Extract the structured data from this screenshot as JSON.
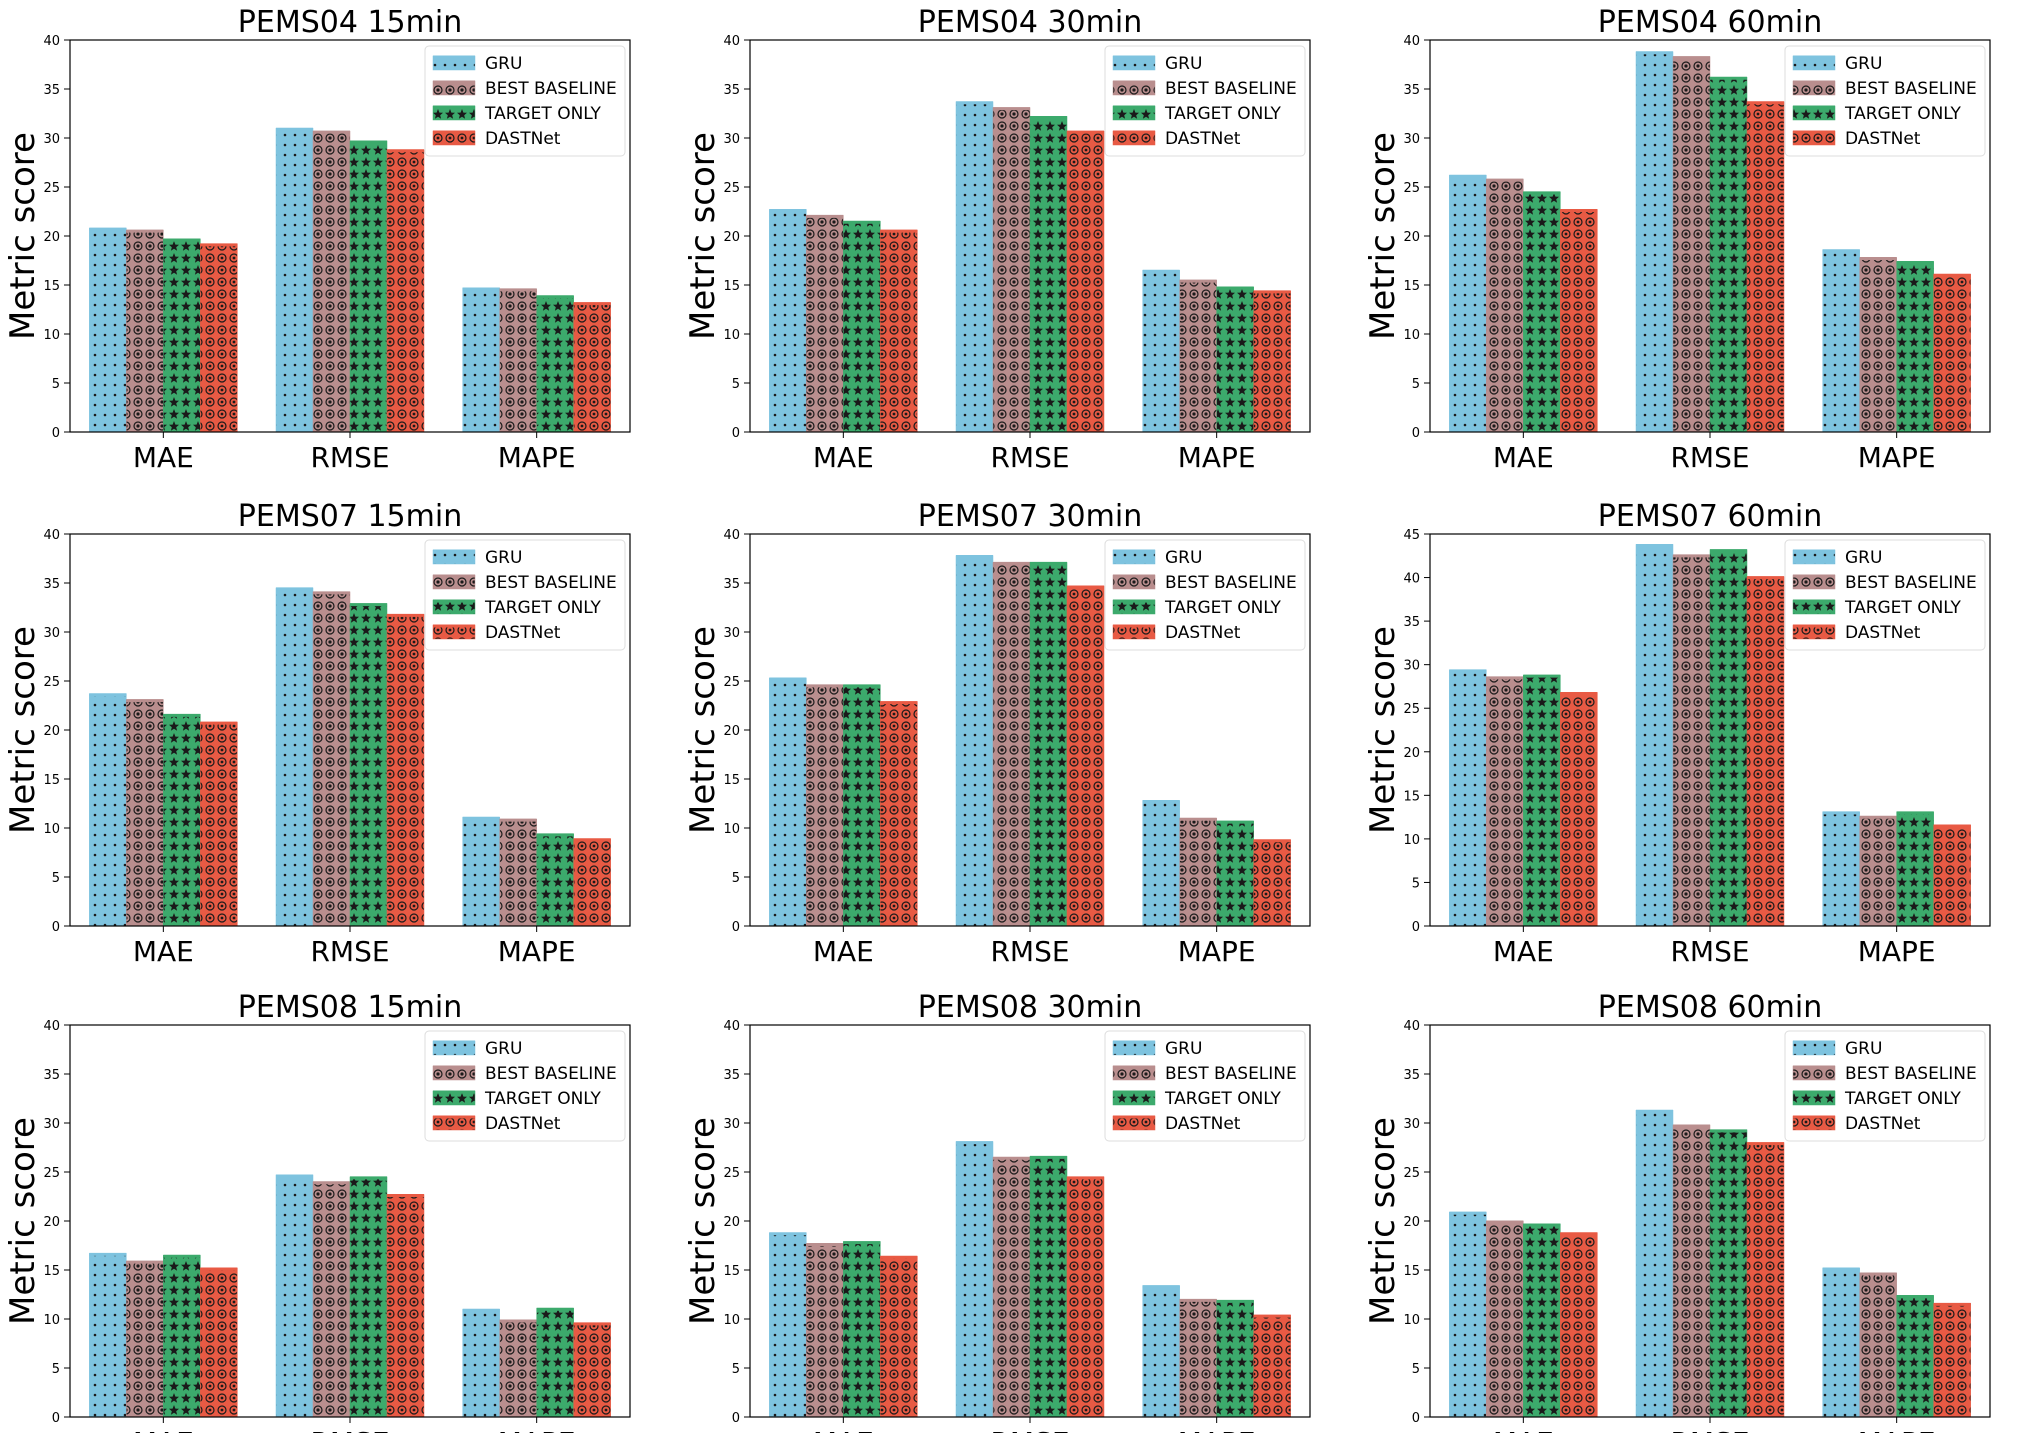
{
  "series_colors": [
    "#7ec3df",
    "#b98e8e",
    "#3caa6c",
    "#e85a44"
  ],
  "legend_labels": [
    "GRU",
    "BEST BASELINE",
    "TARGET ONLY",
    "DASTNet"
  ],
  "chart_data": [
    {
      "type": "bar",
      "title": "PEMS04 15min",
      "ylabel": "Metric score",
      "categories": [
        "MAE",
        "RMSE",
        "MAPE"
      ],
      "ylim": [
        0,
        40
      ],
      "yticks": [
        0,
        5,
        10,
        15,
        20,
        25,
        30,
        35,
        40
      ],
      "legend": "top-right",
      "series": [
        {
          "name": "GRU",
          "values": [
            20.8,
            31.0,
            14.7
          ]
        },
        {
          "name": "BEST BASELINE",
          "values": [
            20.6,
            30.7,
            14.6
          ]
        },
        {
          "name": "TARGET ONLY",
          "values": [
            19.7,
            29.7,
            13.9
          ]
        },
        {
          "name": "DASTNet",
          "values": [
            19.2,
            28.8,
            13.2
          ]
        }
      ]
    },
    {
      "type": "bar",
      "title": "PEMS04 30min",
      "ylabel": "Metric score",
      "categories": [
        "MAE",
        "RMSE",
        "MAPE"
      ],
      "ylim": [
        0,
        40
      ],
      "yticks": [
        0,
        5,
        10,
        15,
        20,
        25,
        30,
        35,
        40
      ],
      "legend": "top-right",
      "series": [
        {
          "name": "GRU",
          "values": [
            22.7,
            33.7,
            16.5
          ]
        },
        {
          "name": "BEST BASELINE",
          "values": [
            22.1,
            33.1,
            15.5
          ]
        },
        {
          "name": "TARGET ONLY",
          "values": [
            21.5,
            32.2,
            14.8
          ]
        },
        {
          "name": "DASTNet",
          "values": [
            20.6,
            30.7,
            14.4
          ]
        }
      ]
    },
    {
      "type": "bar",
      "title": "PEMS04 60min",
      "ylabel": "Metric score",
      "categories": [
        "MAE",
        "RMSE",
        "MAPE"
      ],
      "ylim": [
        0,
        40
      ],
      "yticks": [
        0,
        5,
        10,
        15,
        20,
        25,
        30,
        35,
        40
      ],
      "legend": "top-right",
      "series": [
        {
          "name": "GRU",
          "values": [
            26.2,
            38.8,
            18.6
          ]
        },
        {
          "name": "BEST BASELINE",
          "values": [
            25.8,
            38.3,
            17.8
          ]
        },
        {
          "name": "TARGET ONLY",
          "values": [
            24.5,
            36.2,
            17.4
          ]
        },
        {
          "name": "DASTNet",
          "values": [
            22.7,
            33.7,
            16.1
          ]
        }
      ]
    },
    {
      "type": "bar",
      "title": "PEMS07 15min",
      "ylabel": "Metric score",
      "categories": [
        "MAE",
        "RMSE",
        "MAPE"
      ],
      "ylim": [
        0,
        40
      ],
      "yticks": [
        0,
        5,
        10,
        15,
        20,
        25,
        30,
        35,
        40
      ],
      "legend": "top-right",
      "series": [
        {
          "name": "GRU",
          "values": [
            23.7,
            34.5,
            11.1
          ]
        },
        {
          "name": "BEST BASELINE",
          "values": [
            23.1,
            34.1,
            10.9
          ]
        },
        {
          "name": "TARGET ONLY",
          "values": [
            21.6,
            32.9,
            9.4
          ]
        },
        {
          "name": "DASTNet",
          "values": [
            20.8,
            31.8,
            8.9
          ]
        }
      ]
    },
    {
      "type": "bar",
      "title": "PEMS07 30min",
      "ylabel": "Metric score",
      "categories": [
        "MAE",
        "RMSE",
        "MAPE"
      ],
      "ylim": [
        0,
        40
      ],
      "yticks": [
        0,
        5,
        10,
        15,
        20,
        25,
        30,
        35,
        40
      ],
      "legend": "top-right",
      "series": [
        {
          "name": "GRU",
          "values": [
            25.3,
            37.8,
            12.8
          ]
        },
        {
          "name": "BEST BASELINE",
          "values": [
            24.6,
            37.1,
            11.0
          ]
        },
        {
          "name": "TARGET ONLY",
          "values": [
            24.6,
            37.1,
            10.7
          ]
        },
        {
          "name": "DASTNet",
          "values": [
            22.9,
            34.7,
            8.8
          ]
        }
      ]
    },
    {
      "type": "bar",
      "title": "PEMS07 60min",
      "ylabel": "Metric score",
      "categories": [
        "MAE",
        "RMSE",
        "MAPE"
      ],
      "ylim": [
        0,
        45
      ],
      "yticks": [
        0,
        5,
        10,
        15,
        20,
        25,
        30,
        35,
        40,
        45
      ],
      "legend": "top-right",
      "series": [
        {
          "name": "GRU",
          "values": [
            29.4,
            43.8,
            13.1
          ]
        },
        {
          "name": "BEST BASELINE",
          "values": [
            28.6,
            42.6,
            12.6
          ]
        },
        {
          "name": "TARGET ONLY",
          "values": [
            28.8,
            43.2,
            13.1
          ]
        },
        {
          "name": "DASTNet",
          "values": [
            26.8,
            40.1,
            11.6
          ]
        }
      ]
    },
    {
      "type": "bar",
      "title": "PEMS08 15min",
      "ylabel": "Metric score",
      "categories": [
        "MAE",
        "RMSE",
        "MAPE"
      ],
      "ylim": [
        0,
        40
      ],
      "yticks": [
        0,
        5,
        10,
        15,
        20,
        25,
        30,
        35,
        40
      ],
      "legend": "top-right",
      "series": [
        {
          "name": "GRU",
          "values": [
            16.7,
            24.7,
            11.0
          ]
        },
        {
          "name": "BEST BASELINE",
          "values": [
            15.9,
            24.0,
            9.9
          ]
        },
        {
          "name": "TARGET ONLY",
          "values": [
            16.5,
            24.5,
            11.1
          ]
        },
        {
          "name": "DASTNet",
          "values": [
            15.2,
            22.7,
            9.6
          ]
        }
      ]
    },
    {
      "type": "bar",
      "title": "PEMS08 30min",
      "ylabel": "Metric score",
      "categories": [
        "MAE",
        "RMSE",
        "MAPE"
      ],
      "ylim": [
        0,
        40
      ],
      "yticks": [
        0,
        5,
        10,
        15,
        20,
        25,
        30,
        35,
        40
      ],
      "legend": "top-right",
      "series": [
        {
          "name": "GRU",
          "values": [
            18.8,
            28.1,
            13.4
          ]
        },
        {
          "name": "BEST BASELINE",
          "values": [
            17.7,
            26.5,
            12.0
          ]
        },
        {
          "name": "TARGET ONLY",
          "values": [
            17.9,
            26.6,
            11.9
          ]
        },
        {
          "name": "DASTNet",
          "values": [
            16.4,
            24.5,
            10.4
          ]
        }
      ]
    },
    {
      "type": "bar",
      "title": "PEMS08 60min",
      "ylabel": "Metric score",
      "categories": [
        "MAE",
        "RMSE",
        "MAPE"
      ],
      "ylim": [
        0,
        40
      ],
      "yticks": [
        0,
        5,
        10,
        15,
        20,
        25,
        30,
        35,
        40
      ],
      "legend": "top-right",
      "series": [
        {
          "name": "GRU",
          "values": [
            20.9,
            31.3,
            15.2
          ]
        },
        {
          "name": "BEST BASELINE",
          "values": [
            20.0,
            29.8,
            14.7
          ]
        },
        {
          "name": "TARGET ONLY",
          "values": [
            19.7,
            29.3,
            12.4
          ]
        },
        {
          "name": "DASTNet",
          "values": [
            18.8,
            28.0,
            11.6
          ]
        }
      ]
    }
  ]
}
